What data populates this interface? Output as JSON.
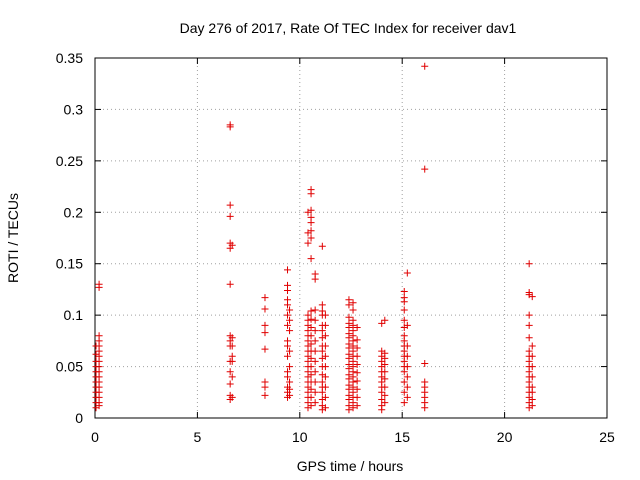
{
  "chart_data": {
    "type": "scatter",
    "title": "Day 276 of 2017, Rate Of TEC Index for receiver dav1",
    "xlabel": "GPS time / hours",
    "ylabel": "ROTI / TECUs",
    "xlim": [
      0,
      25
    ],
    "ylim": [
      0,
      0.35
    ],
    "xticks": [
      "0",
      "5",
      "10",
      "15",
      "20",
      "25"
    ],
    "yticks": [
      "0",
      "0.05",
      "0.1",
      "0.15",
      "0.2",
      "0.25",
      "0.3",
      "0.35"
    ],
    "xtick_values": [
      0,
      5,
      10,
      15,
      20,
      25
    ],
    "ytick_values": [
      0,
      0.05,
      0.1,
      0.15,
      0.2,
      0.25,
      0.3,
      0.35
    ],
    "grid": true,
    "marker": "+",
    "color": "#e00000",
    "clusters": [
      {
        "x": 0.05,
        "y": [
          0.01,
          0.015,
          0.02,
          0.025,
          0.03,
          0.035,
          0.04,
          0.045,
          0.05,
          0.055,
          0.062,
          0.07
        ]
      },
      {
        "x": 0.2,
        "y": [
          0.012,
          0.015,
          0.02,
          0.025,
          0.03,
          0.035,
          0.04,
          0.045,
          0.05,
          0.055,
          0.06,
          0.065,
          0.07,
          0.075,
          0.08,
          0.127,
          0.13
        ]
      },
      {
        "x": 6.6,
        "y": [
          0.018,
          0.022,
          0.033,
          0.045,
          0.055,
          0.07,
          0.075,
          0.08,
          0.13,
          0.165,
          0.17,
          0.196,
          0.207,
          0.283,
          0.285
        ]
      },
      {
        "x": 6.7,
        "y": [
          0.02,
          0.04,
          0.055,
          0.06,
          0.07,
          0.078,
          0.168
        ]
      },
      {
        "x": 8.3,
        "y": [
          0.022,
          0.03,
          0.035,
          0.067,
          0.083,
          0.09,
          0.106,
          0.117
        ]
      },
      {
        "x": 9.4,
        "y": [
          0.02,
          0.025,
          0.03,
          0.04,
          0.045,
          0.06,
          0.07,
          0.075,
          0.09,
          0.1,
          0.11,
          0.115,
          0.124,
          0.129,
          0.144
        ]
      },
      {
        "x": 9.5,
        "y": [
          0.022,
          0.028,
          0.035,
          0.05,
          0.065,
          0.085,
          0.095,
          0.105
        ]
      },
      {
        "x": 10.4,
        "y": [
          0.01,
          0.015,
          0.02,
          0.025,
          0.03,
          0.035,
          0.04,
          0.045,
          0.05,
          0.055,
          0.06,
          0.065,
          0.07,
          0.075,
          0.08,
          0.085,
          0.09,
          0.095,
          0.1,
          0.18,
          0.17,
          0.2
        ]
      },
      {
        "x": 10.55,
        "y": [
          0.012,
          0.02,
          0.028,
          0.035,
          0.042,
          0.05,
          0.058,
          0.065,
          0.072,
          0.08,
          0.088,
          0.096,
          0.104,
          0.155,
          0.175,
          0.182,
          0.19,
          0.195,
          0.202,
          0.218,
          0.222
        ]
      },
      {
        "x": 10.75,
        "y": [
          0.015,
          0.025,
          0.035,
          0.045,
          0.055,
          0.065,
          0.075,
          0.085,
          0.095,
          0.105,
          0.135,
          0.14
        ]
      },
      {
        "x": 11.1,
        "y": [
          0.008,
          0.012,
          0.018,
          0.025,
          0.03,
          0.035,
          0.042,
          0.05,
          0.058,
          0.065,
          0.07,
          0.078,
          0.085,
          0.09,
          0.1,
          0.104,
          0.11,
          0.167
        ]
      },
      {
        "x": 11.25,
        "y": [
          0.01,
          0.02,
          0.03,
          0.04,
          0.05,
          0.06,
          0.07,
          0.08,
          0.09,
          0.1
        ]
      },
      {
        "x": 12.4,
        "y": [
          0.008,
          0.012,
          0.018,
          0.022,
          0.028,
          0.032,
          0.038,
          0.042,
          0.048,
          0.052,
          0.058,
          0.062,
          0.068,
          0.072,
          0.078,
          0.082,
          0.088,
          0.092,
          0.098,
          0.11,
          0.115
        ]
      },
      {
        "x": 12.6,
        "y": [
          0.01,
          0.015,
          0.02,
          0.025,
          0.03,
          0.035,
          0.04,
          0.045,
          0.05,
          0.055,
          0.06,
          0.065,
          0.07,
          0.075,
          0.08,
          0.085,
          0.09,
          0.095,
          0.105,
          0.112
        ]
      },
      {
        "x": 12.8,
        "y": [
          0.012,
          0.02,
          0.028,
          0.036,
          0.044,
          0.052,
          0.06,
          0.068,
          0.076,
          0.088
        ]
      },
      {
        "x": 14.0,
        "y": [
          0.008,
          0.012,
          0.018,
          0.025,
          0.03,
          0.035,
          0.04,
          0.045,
          0.05,
          0.055,
          0.06,
          0.065,
          0.092
        ]
      },
      {
        "x": 14.15,
        "y": [
          0.015,
          0.022,
          0.03,
          0.038,
          0.045,
          0.052,
          0.058,
          0.063,
          0.095
        ]
      },
      {
        "x": 15.1,
        "y": [
          0.015,
          0.025,
          0.035,
          0.045,
          0.05,
          0.055,
          0.06,
          0.065,
          0.07,
          0.075,
          0.08,
          0.088,
          0.095,
          0.105,
          0.113,
          0.117,
          0.123
        ]
      },
      {
        "x": 15.25,
        "y": [
          0.02,
          0.03,
          0.04,
          0.05,
          0.06,
          0.07,
          0.09,
          0.141
        ]
      },
      {
        "x": 16.1,
        "y": [
          0.01,
          0.015,
          0.02,
          0.025,
          0.03,
          0.035,
          0.053,
          0.242,
          0.342
        ]
      },
      {
        "x": 21.2,
        "y": [
          0.01,
          0.015,
          0.02,
          0.025,
          0.03,
          0.035,
          0.04,
          0.045,
          0.05,
          0.055,
          0.06,
          0.065,
          0.078,
          0.09,
          0.1,
          0.12,
          0.122,
          0.15
        ]
      },
      {
        "x": 21.35,
        "y": [
          0.012,
          0.018,
          0.025,
          0.03,
          0.04,
          0.05,
          0.06,
          0.07,
          0.118
        ]
      }
    ]
  }
}
